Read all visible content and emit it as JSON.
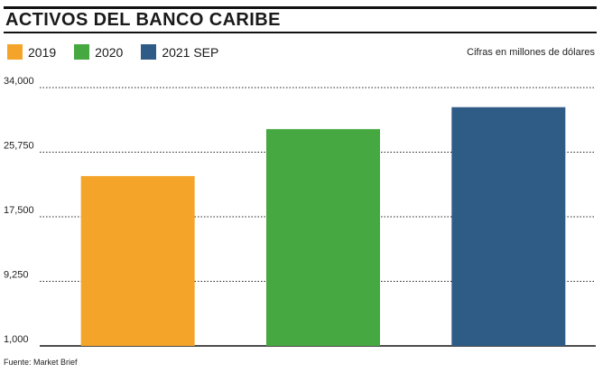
{
  "title": "ACTIVOS DEL BANCO CARIBE",
  "units_note": "Cifras en millones de dólares",
  "source": "Fuente: Market Brief",
  "legend": [
    {
      "label": "2019",
      "color": "#f5a42a"
    },
    {
      "label": "2020",
      "color": "#46a840"
    },
    {
      "label": "2021 SEP",
      "color": "#2f5c87"
    }
  ],
  "chart_data": {
    "type": "bar",
    "categories": [
      "2019",
      "2020",
      "2021 SEP"
    ],
    "values": [
      22700,
      28700,
      31500
    ],
    "colors": [
      "#f5a42a",
      "#46a840",
      "#2f5c87"
    ],
    "title": "ACTIVOS DEL BANCO CARIBE",
    "xlabel": "",
    "ylabel": "",
    "ylim": [
      1000,
      34000
    ],
    "yticks": [
      1000,
      9250,
      17500,
      25750,
      34000
    ],
    "ytick_labels": [
      "1,000",
      "9,250",
      "17,500",
      "25,750",
      "34,000"
    ],
    "grid": true,
    "legend_position": "top-left"
  }
}
